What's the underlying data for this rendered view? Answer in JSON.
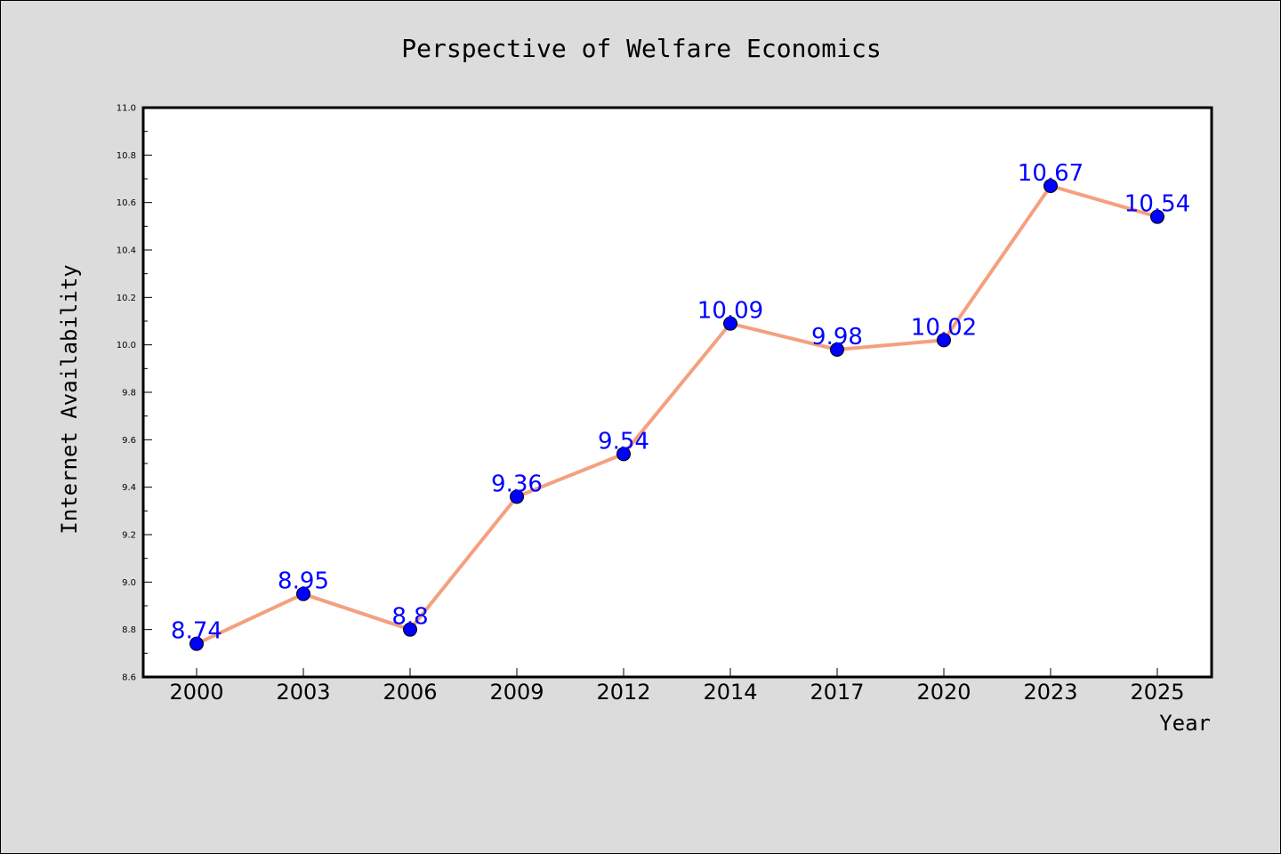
{
  "chart_data": {
    "type": "line",
    "title": "Perspective of Welfare Economics",
    "xlabel": "Year",
    "ylabel": "Internet Availability",
    "categories": [
      "2000",
      "2003",
      "2006",
      "2009",
      "2012",
      "2014",
      "2017",
      "2020",
      "2023",
      "2025"
    ],
    "series": [
      {
        "values": [
          8.74,
          8.95,
          8.8,
          9.36,
          9.54,
          10.09,
          9.98,
          10.02,
          10.67,
          10.54
        ],
        "value_labels": [
          "8.74",
          "8.95",
          "8.8",
          "9.36",
          "9.54",
          "10.09",
          "9.98",
          "10.02",
          "10.67",
          "10.54"
        ],
        "line_color": "#f4a07f",
        "marker_color": "#0000ff",
        "label_color": "#0000ff"
      }
    ],
    "ylim": [
      8.6,
      11.0
    ],
    "yticks": [
      "8.6",
      "8.8",
      "9.0",
      "9.2",
      "9.4",
      "9.6",
      "9.8",
      "10.0",
      "10.2",
      "10.4",
      "10.6",
      "10.8",
      "11.0"
    ],
    "grid": false,
    "legend": "none",
    "background_color": "#dcdcdc",
    "plot_background_color": "#ffffff"
  }
}
